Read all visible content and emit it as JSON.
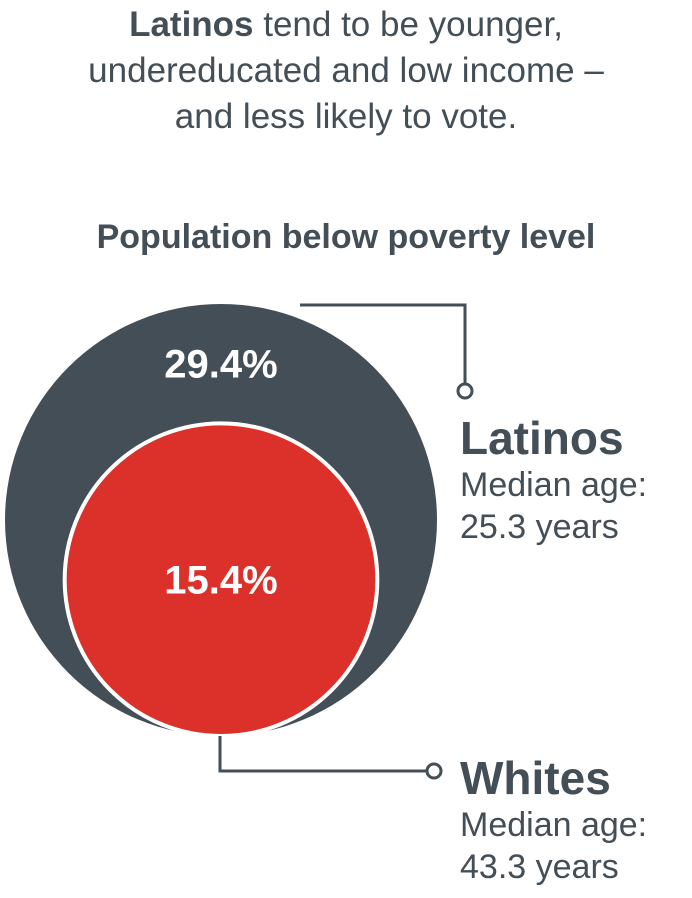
{
  "headline": {
    "bold_part": "Latinos",
    "line1_rest": " tend to be younger,",
    "line2": "undereducated and low income –",
    "line3": "and less likely to vote."
  },
  "colors": {
    "latinos": "#434e56",
    "whites": "#dc312b",
    "text": "#434e56",
    "circle_label": "#ffffff"
  },
  "chart_data": {
    "type": "nested-circle",
    "title": "Population below poverty level",
    "unit": "%",
    "series": [
      {
        "name": "Latinos",
        "value": 29.4,
        "value_label": "29.4%",
        "median_age_label": "Median age:",
        "median_age": "25.3 years",
        "color": "#434e56"
      },
      {
        "name": "Whites",
        "value": 15.4,
        "value_label": "15.4%",
        "median_age_label": "Median age:",
        "median_age": "43.3 years",
        "color": "#dc312b"
      }
    ]
  }
}
